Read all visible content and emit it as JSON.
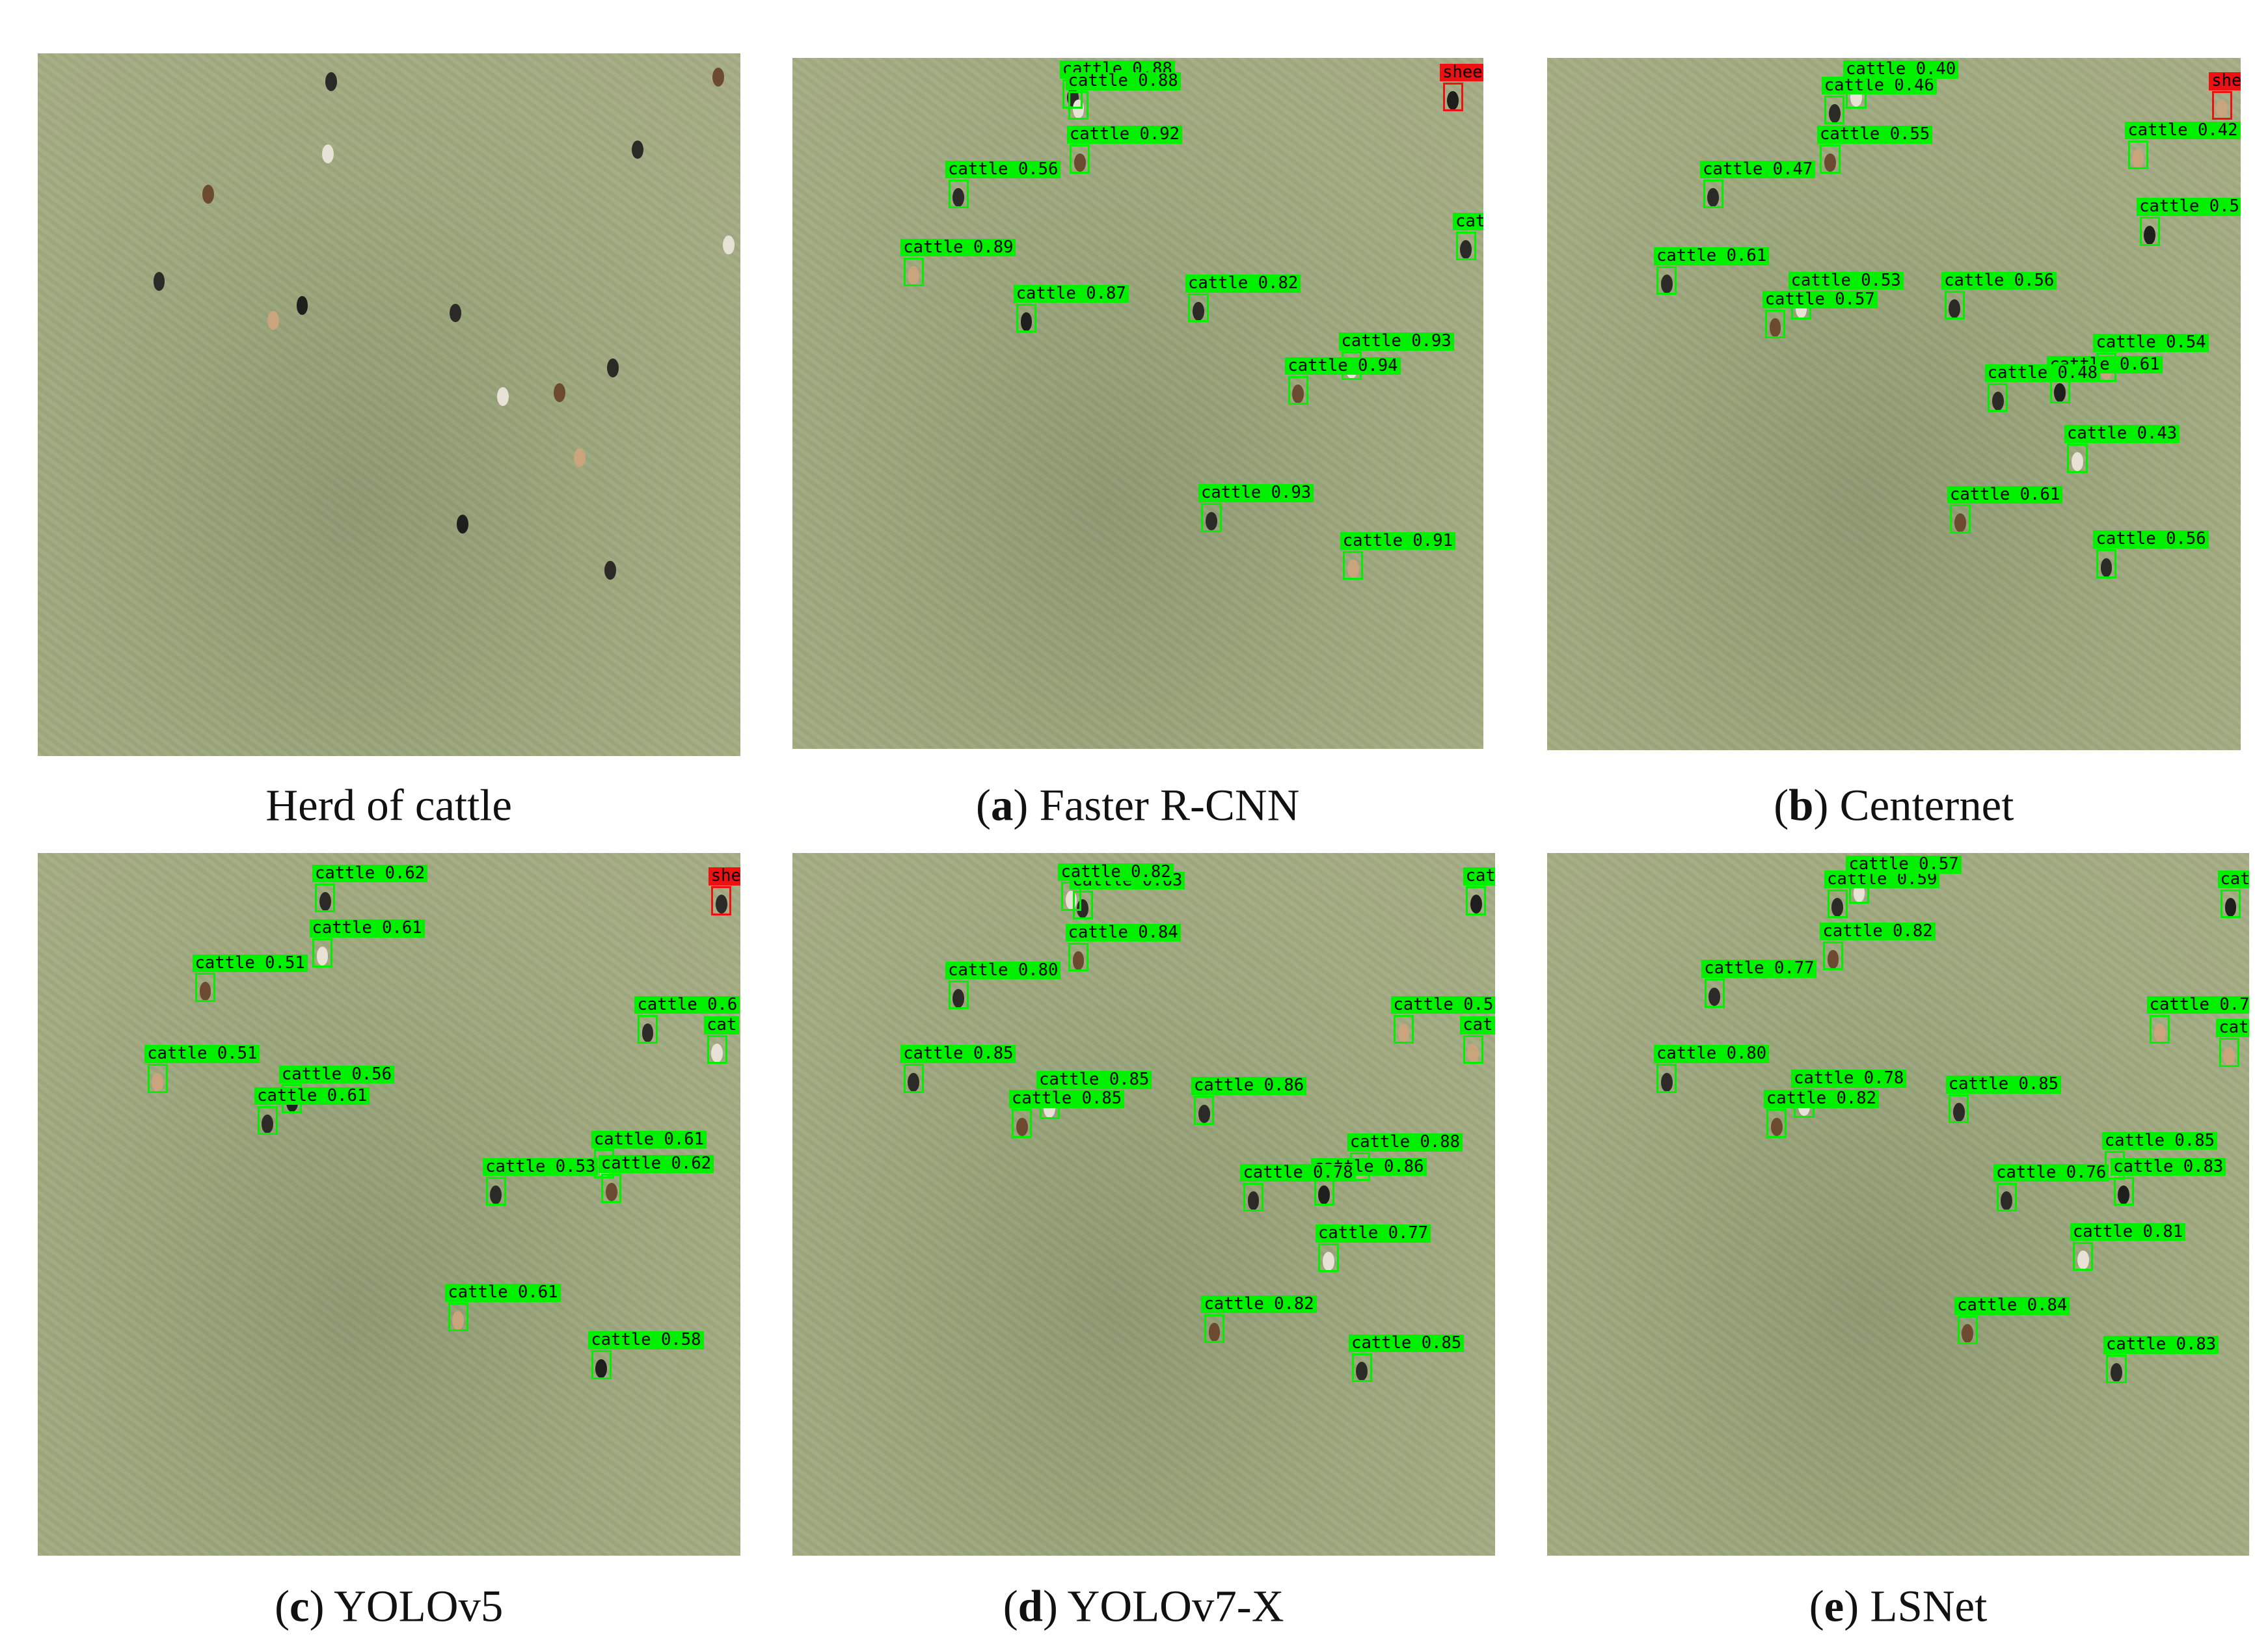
{
  "panels": [
    {
      "caption": [
        "Herd of cattle"
      ],
      "detections": []
    },
    {
      "caption": [
        "(",
        "a",
        ") Faster R-CNN"
      ],
      "detections": [
        {
          "text": "cattle 0.88",
          "color": "#00f000"
        },
        {
          "text": "cattle 0.88",
          "color": "#00f000"
        },
        {
          "text": "cattle 0.92",
          "color": "#00f000"
        },
        {
          "text": "cattle 0.56",
          "color": "#00f000"
        },
        {
          "text": "cattle 0.89",
          "color": "#00f000"
        },
        {
          "text": "cattle 0.87",
          "color": "#00f000"
        },
        {
          "text": "cattle 0.82",
          "color": "#00f000"
        },
        {
          "text": "cattle 0.93",
          "color": "#00f000"
        },
        {
          "text": "cattle 0.94",
          "color": "#00f000"
        },
        {
          "text": "cattle 0.93",
          "color": "#00f000"
        },
        {
          "text": "cattle 0.91",
          "color": "#00f000"
        },
        {
          "text": "shee",
          "color": "#ee1111"
        },
        {
          "text": "cat",
          "color": "#00f000"
        }
      ]
    },
    {
      "caption": [
        "(",
        "b",
        ") Centernet"
      ],
      "detections": [
        {
          "text": "cattle 0.46",
          "color": "#00f000"
        },
        {
          "text": "cattle 0.40",
          "color": "#00f000"
        },
        {
          "text": "cattle 0.55",
          "color": "#00f000"
        },
        {
          "text": "cattle 0.47",
          "color": "#00f000"
        },
        {
          "text": "cattle 0.42",
          "color": "#00f000"
        },
        {
          "text": "cattle 0.5",
          "color": "#00f000"
        },
        {
          "text": "cattle 0.61",
          "color": "#00f000"
        },
        {
          "text": "cattle 0.53",
          "color": "#00f000"
        },
        {
          "text": "cattle 0.57",
          "color": "#00f000"
        },
        {
          "text": "cattle 0.56",
          "color": "#00f000"
        },
        {
          "text": "cattle 0.54",
          "color": "#00f000"
        },
        {
          "text": "cattle 0.61",
          "color": "#00f000"
        },
        {
          "text": "cattle 0.48",
          "color": "#00f000"
        },
        {
          "text": "cattle 0.43",
          "color": "#00f000"
        },
        {
          "text": "cattle 0.61",
          "color": "#00f000"
        },
        {
          "text": "cattle 0.56",
          "color": "#00f000"
        },
        {
          "text": "she",
          "color": "#ee1111"
        }
      ]
    },
    {
      "caption": [
        "(",
        "c",
        ") YOLOv5"
      ],
      "detections": [
        {
          "text": "cattle 0.62",
          "color": "#00f000"
        },
        {
          "text": "cattle 0.61",
          "color": "#00f000"
        },
        {
          "text": "cattle 0.51",
          "color": "#00f000"
        },
        {
          "text": "cattle 0.6",
          "color": "#00f000"
        },
        {
          "text": "cattle 0.51",
          "color": "#00f000"
        },
        {
          "text": "cattle 0.56",
          "color": "#00f000"
        },
        {
          "text": "cattle 0.61",
          "color": "#00f000"
        },
        {
          "text": "cattle 0.61",
          "color": "#00f000"
        },
        {
          "text": "cattle 0.62",
          "color": "#00f000"
        },
        {
          "text": "cattle 0.53",
          "color": "#00f000"
        },
        {
          "text": "cattle 0.61",
          "color": "#00f000"
        },
        {
          "text": "cattle 0.58",
          "color": "#00f000"
        },
        {
          "text": "she",
          "color": "#ee1111"
        },
        {
          "text": "cat",
          "color": "#00f000"
        }
      ]
    },
    {
      "caption": [
        "(",
        "d",
        ") YOLOv7-X"
      ],
      "detections": [
        {
          "text": "cattle 0.63",
          "color": "#00f000"
        },
        {
          "text": "cattle 0.82",
          "color": "#00f000"
        },
        {
          "text": "cattle 0.84",
          "color": "#00f000"
        },
        {
          "text": "cattle 0.80",
          "color": "#00f000"
        },
        {
          "text": "cattle 0.5",
          "color": "#00f000"
        },
        {
          "text": "cat",
          "color": "#00f000"
        },
        {
          "text": "cattle 0.85",
          "color": "#00f000"
        },
        {
          "text": "cattle 0.85",
          "color": "#00f000"
        },
        {
          "text": "cattle 0.85",
          "color": "#00f000"
        },
        {
          "text": "cattle 0.86",
          "color": "#00f000"
        },
        {
          "text": "cattle 0.88",
          "color": "#00f000"
        },
        {
          "text": "cattle 0.86",
          "color": "#00f000"
        },
        {
          "text": "cattle 0.78",
          "color": "#00f000"
        },
        {
          "text": "cattle 0.77",
          "color": "#00f000"
        },
        {
          "text": "cattle 0.82",
          "color": "#00f000"
        },
        {
          "text": "cattle 0.85",
          "color": "#00f000"
        },
        {
          "text": "cat",
          "color": "#00f000"
        }
      ]
    },
    {
      "caption": [
        "(",
        "e",
        ") LSNet"
      ],
      "detections": [
        {
          "text": "cattle 0.59",
          "color": "#00f000"
        },
        {
          "text": "cattle 0.57",
          "color": "#00f000"
        },
        {
          "text": "cattle 0.82",
          "color": "#00f000"
        },
        {
          "text": "cattle 0.77",
          "color": "#00f000"
        },
        {
          "text": "cattle 0.7",
          "color": "#00f000"
        },
        {
          "text": "cat",
          "color": "#00f000"
        },
        {
          "text": "cattle 0.80",
          "color": "#00f000"
        },
        {
          "text": "cattle 0.78",
          "color": "#00f000"
        },
        {
          "text": "cattle 0.82",
          "color": "#00f000"
        },
        {
          "text": "cattle 0.85",
          "color": "#00f000"
        },
        {
          "text": "cattle 0.85",
          "color": "#00f000"
        },
        {
          "text": "cattle 0.83",
          "color": "#00f000"
        },
        {
          "text": "cattle 0.76",
          "color": "#00f000"
        },
        {
          "text": "cattle 0.81",
          "color": "#00f000"
        },
        {
          "text": "cattle 0.84",
          "color": "#00f000"
        },
        {
          "text": "cattle 0.83",
          "color": "#00f000"
        },
        {
          "text": "cat",
          "color": "#00f000"
        }
      ]
    }
  ]
}
